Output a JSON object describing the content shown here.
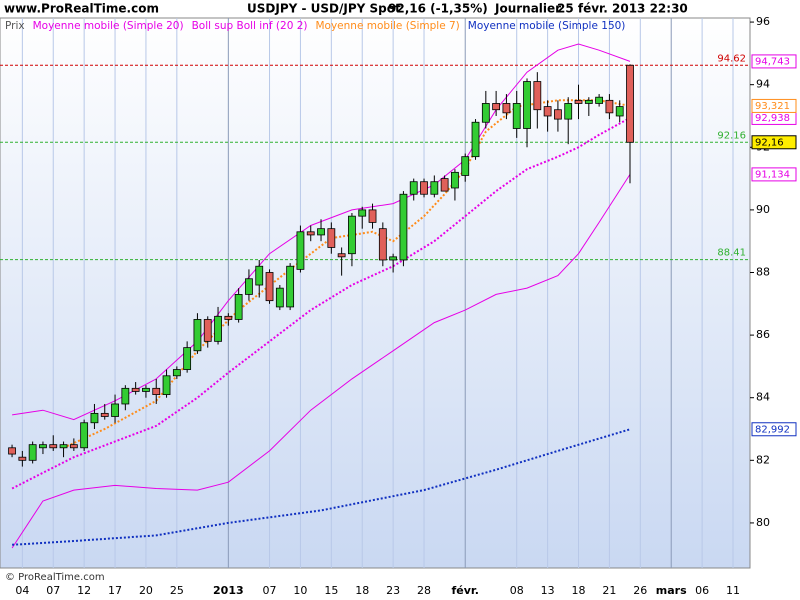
{
  "header": {
    "site": "www.ProRealTime.com",
    "symbol": "USDJPY - USD/JPY Spot",
    "last": "92,16 (-1,35%)",
    "period": "Journalier",
    "datetime": "25 févr. 2013 22:30",
    "copyright": "© ProRealTime.com"
  },
  "chart_data": {
    "type": "candlestick",
    "xlim": [
      -1.17,
      71.65
    ],
    "xticks": [
      {
        "value": 1,
        "label": "04"
      },
      {
        "value": 4,
        "label": "07"
      },
      {
        "value": 7,
        "label": "12"
      },
      {
        "value": 10,
        "label": "17"
      },
      {
        "value": 13,
        "label": "20"
      },
      {
        "value": 16,
        "label": "25"
      },
      {
        "value": 21,
        "label": "2013",
        "major": true
      },
      {
        "value": 25,
        "label": "07"
      },
      {
        "value": 28,
        "label": "10"
      },
      {
        "value": 31,
        "label": "15"
      },
      {
        "value": 34,
        "label": "18"
      },
      {
        "value": 37,
        "label": "23"
      },
      {
        "value": 40,
        "label": "28"
      },
      {
        "value": 44,
        "label": "févr.",
        "major": true
      },
      {
        "value": 49,
        "label": "08"
      },
      {
        "value": 52,
        "label": "13"
      },
      {
        "value": 55,
        "label": "18"
      },
      {
        "value": 58,
        "label": "21"
      },
      {
        "value": 61,
        "label": "26"
      },
      {
        "value": 64,
        "label": "mars",
        "major": true
      },
      {
        "value": 67,
        "label": "06"
      },
      {
        "value": 70,
        "label": "11"
      }
    ],
    "ylim": [
      78.56,
      96.13
    ],
    "yticks": [
      80,
      82,
      84,
      86,
      88,
      90,
      92,
      94,
      96
    ],
    "candles": {
      "name": "Prix",
      "up_color": "#33cc33",
      "down_color": "#e0605a",
      "close_label": "92,16",
      "open": [
        82.4,
        82.1,
        82.0,
        82.4,
        82.5,
        82.4,
        82.5,
        82.4,
        83.2,
        83.5,
        83.4,
        83.8,
        84.3,
        84.2,
        84.3,
        84.1,
        84.7,
        84.9,
        85.5,
        86.5,
        85.8,
        86.6,
        86.5,
        87.3,
        87.6,
        88.0,
        86.9,
        86.9,
        88.1,
        89.3,
        89.2,
        89.4,
        88.6,
        88.6,
        89.8,
        90.0,
        89.4,
        88.4,
        88.4,
        90.5,
        90.9,
        90.5,
        91.0,
        90.7,
        91.1,
        91.7,
        92.8,
        93.4,
        93.4,
        92.6,
        92.6,
        94.1,
        93.3,
        93.2,
        92.9,
        93.5,
        93.4,
        93.4,
        93.5,
        93.0,
        94.62
      ],
      "high": [
        82.5,
        82.3,
        82.6,
        82.6,
        82.8,
        82.6,
        82.7,
        83.3,
        83.8,
        83.8,
        84.1,
        84.4,
        84.5,
        84.4,
        84.6,
        84.9,
        85.0,
        85.8,
        86.7,
        86.6,
        86.9,
        86.7,
        87.5,
        88.1,
        88.4,
        88.1,
        87.6,
        88.3,
        89.5,
        89.5,
        89.7,
        89.6,
        88.8,
        89.9,
        90.1,
        90.2,
        89.6,
        88.6,
        90.6,
        91.0,
        91.0,
        91.1,
        91.1,
        91.3,
        91.8,
        92.9,
        93.8,
        93.8,
        93.7,
        93.8,
        94.2,
        94.4,
        93.5,
        93.5,
        93.6,
        94.0,
        93.6,
        93.7,
        93.7,
        93.5,
        94.65
      ],
      "low": [
        82.1,
        81.8,
        81.9,
        82.2,
        82.3,
        82.1,
        82.3,
        82.3,
        83.0,
        83.3,
        83.2,
        83.6,
        84.1,
        84.0,
        83.8,
        84.0,
        84.6,
        84.8,
        85.4,
        85.6,
        85.7,
        86.3,
        86.4,
        87.1,
        87.2,
        87.0,
        86.8,
        86.8,
        88.0,
        89.0,
        89.0,
        88.6,
        87.9,
        88.2,
        89.4,
        89.4,
        88.2,
        88.0,
        88.2,
        90.3,
        90.4,
        90.4,
        90.6,
        90.3,
        90.9,
        91.6,
        92.6,
        93.0,
        92.9,
        92.3,
        92.0,
        92.6,
        92.5,
        92.5,
        92.1,
        92.9,
        93.0,
        93.3,
        92.9,
        92.8,
        90.85
      ],
      "close": [
        82.2,
        82.0,
        82.5,
        82.5,
        82.4,
        82.5,
        82.4,
        83.2,
        83.5,
        83.4,
        83.8,
        84.3,
        84.2,
        84.3,
        84.1,
        84.7,
        84.9,
        85.6,
        86.5,
        85.8,
        86.6,
        86.5,
        87.3,
        87.8,
        88.2,
        87.1,
        87.5,
        88.2,
        89.3,
        89.2,
        89.4,
        88.8,
        88.5,
        89.8,
        90.0,
        89.6,
        88.4,
        88.5,
        90.5,
        90.9,
        90.5,
        90.9,
        90.6,
        91.2,
        91.7,
        92.8,
        93.4,
        93.2,
        93.1,
        93.4,
        94.1,
        93.2,
        93.0,
        92.9,
        93.4,
        93.4,
        93.5,
        93.6,
        93.1,
        93.3,
        92.16
      ]
    },
    "series": [
      {
        "name": "Moyenne mobile (Simple 20)",
        "kind": "line",
        "color": "#e600e6",
        "dash": "dotted",
        "last_label": "92,938",
        "x": [
          0,
          3,
          6,
          10,
          14,
          18,
          21,
          25,
          29,
          33,
          37,
          41,
          44,
          47,
          50,
          53,
          55,
          57,
          60
        ],
        "values": [
          81.1,
          81.6,
          82.1,
          82.6,
          83.1,
          84.0,
          84.8,
          85.8,
          86.8,
          87.6,
          88.2,
          89.0,
          89.8,
          90.6,
          91.3,
          91.7,
          92.0,
          92.4,
          92.938
        ]
      },
      {
        "name": "Boll sup Boll inf (20 2)",
        "kind": "band",
        "color": "#e600e6",
        "upper_label": "94,743",
        "lower_label": "91,134",
        "x": [
          0,
          3,
          6,
          10,
          14,
          18,
          21,
          25,
          29,
          33,
          37,
          41,
          44,
          47,
          50,
          53,
          55,
          57,
          60
        ],
        "upper": [
          83.45,
          83.6,
          83.3,
          83.9,
          84.6,
          85.8,
          87.1,
          88.6,
          89.5,
          90.0,
          90.2,
          90.8,
          91.6,
          93.2,
          94.4,
          95.1,
          95.3,
          95.1,
          94.743
        ],
        "lower": [
          79.2,
          80.7,
          81.05,
          81.2,
          81.1,
          81.05,
          81.3,
          82.3,
          83.6,
          84.6,
          85.5,
          86.4,
          86.8,
          87.3,
          87.5,
          87.9,
          88.6,
          89.6,
          91.134
        ]
      },
      {
        "name": "Moyenne mobile (Simple 7)",
        "kind": "line",
        "color": "#ff8c1a",
        "dash": "dotted",
        "last_label": "93,321",
        "x": [
          5,
          9,
          14,
          18,
          22,
          27,
          31,
          35,
          37,
          40,
          42,
          44,
          46,
          49,
          53,
          57,
          60
        ],
        "values": [
          82.4,
          83.0,
          83.9,
          85.5,
          86.8,
          88.1,
          89.1,
          89.3,
          89.0,
          89.8,
          90.5,
          91.3,
          92.5,
          93.3,
          93.5,
          93.5,
          93.321
        ]
      },
      {
        "name": "Moyenne mobile (Simple 150)",
        "kind": "line",
        "color": "#1030c0",
        "dash": "dotted",
        "last_label": "82,992",
        "x": [
          0,
          5,
          14,
          21,
          30,
          40,
          47,
          53,
          60
        ],
        "values": [
          79.3,
          79.4,
          79.6,
          80.0,
          80.4,
          81.05,
          81.7,
          82.3,
          82.992
        ]
      }
    ],
    "ref_lines": [
      {
        "value": 94.62,
        "color": "#d00000"
      },
      {
        "value": 92.16,
        "color": "#30b030"
      },
      {
        "value": 88.41,
        "color": "#30b030"
      }
    ],
    "price_badge_color": "#ffee00"
  }
}
